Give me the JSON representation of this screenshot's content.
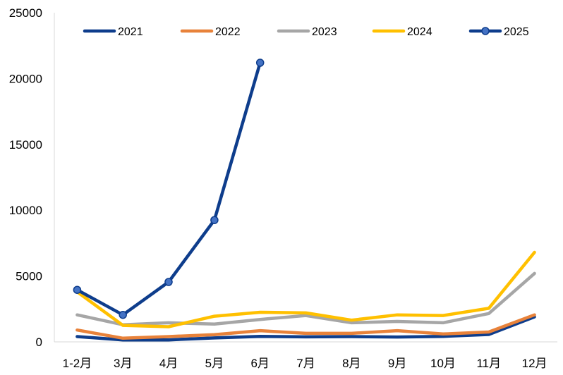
{
  "chart_data": {
    "type": "line",
    "title": "",
    "xlabel": "",
    "ylabel": "",
    "categories": [
      "1-2月",
      "3月",
      "4月",
      "5月",
      "6月",
      "7月",
      "8月",
      "9月",
      "10月",
      "11月",
      "12月"
    ],
    "ylim": [
      0,
      25000
    ],
    "yticks": [
      0,
      5000,
      10000,
      15000,
      20000,
      25000
    ],
    "grid": false,
    "legend_position": "top",
    "series": [
      {
        "name": "2021",
        "color": "#0E3D8C",
        "markers": false,
        "values": [
          400,
          150,
          150,
          300,
          420,
          380,
          400,
          370,
          420,
          560,
          1900
        ]
      },
      {
        "name": "2022",
        "color": "#E8823A",
        "markers": false,
        "values": [
          900,
          280,
          400,
          550,
          850,
          650,
          650,
          850,
          600,
          750,
          2050
        ]
      },
      {
        "name": "2023",
        "color": "#A6A6A6",
        "markers": false,
        "values": [
          2050,
          1300,
          1450,
          1350,
          1700,
          2000,
          1450,
          1550,
          1450,
          2150,
          5200
        ]
      },
      {
        "name": "2024",
        "color": "#FFC000",
        "markers": false,
        "values": [
          3800,
          1250,
          1150,
          1950,
          2250,
          2200,
          1650,
          2050,
          2000,
          2550,
          6800
        ]
      },
      {
        "name": "2025",
        "color": "#0E3D8C",
        "markers": true,
        "marker_fill": "#4472C4",
        "values": [
          3950,
          2050,
          4550,
          9250,
          21200,
          null,
          null,
          null,
          null,
          null,
          null
        ]
      }
    ]
  }
}
